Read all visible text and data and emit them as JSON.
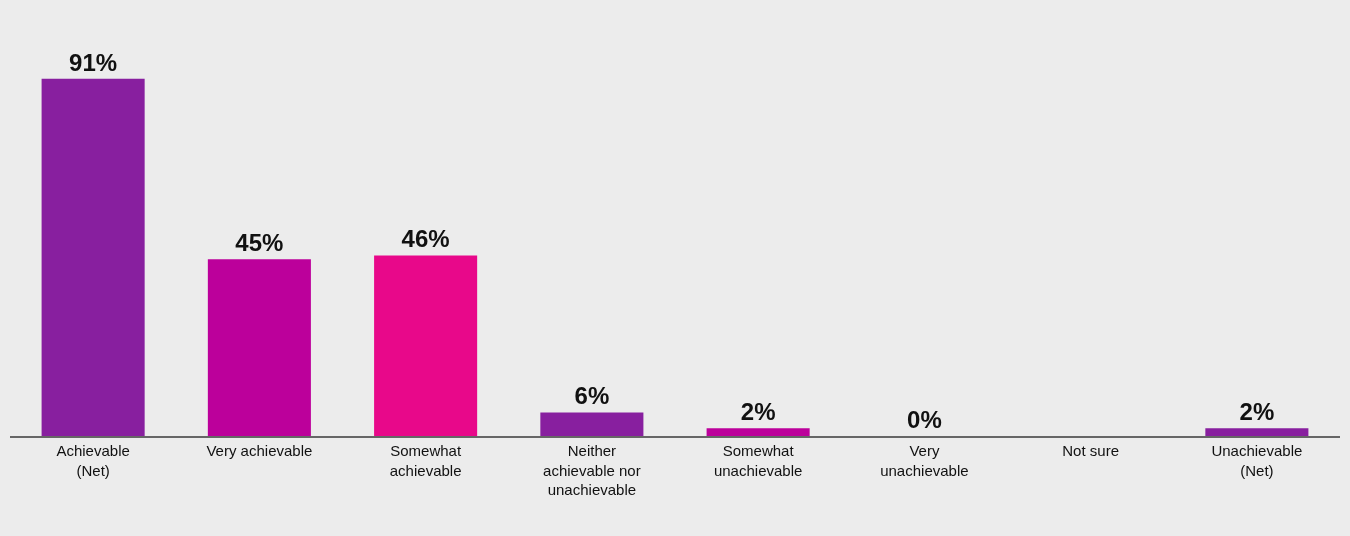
{
  "chart_data": {
    "type": "bar",
    "categories": [
      "Achievable (Net)",
      "Very achievable",
      "Somewhat achievable",
      "Neither achievable nor unachievable",
      "Somewhat unachievable",
      "Very unachievable",
      "Not sure",
      "Unachievable (Net)"
    ],
    "values": [
      91,
      45,
      46,
      6,
      2,
      0,
      null,
      2
    ],
    "value_labels": [
      "91%",
      "45%",
      "46%",
      "6%",
      "2%",
      "0%",
      null,
      "2%"
    ],
    "colors": [
      "#881f9f",
      "#bc009b",
      "#e8088a",
      "#881f9f",
      "#bc009b",
      "#e8088a",
      "#e8088a",
      "#881f9f"
    ],
    "tick_labels": "x",
    "grid": false,
    "legend": false
  }
}
